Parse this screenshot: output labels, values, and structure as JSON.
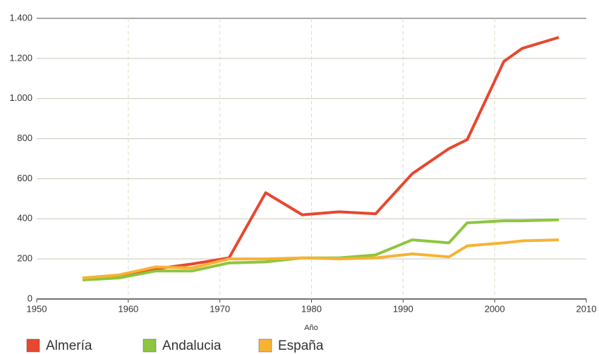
{
  "chart_data": {
    "type": "line",
    "x_label": "Año",
    "x": [
      1955,
      1959,
      1963,
      1967,
      1971,
      1975,
      1979,
      1983,
      1987,
      1991,
      1995,
      1997,
      2001,
      2003,
      2007
    ],
    "series": [
      {
        "name": "Almería",
        "color": "#e8472f",
        "values": [
          105,
          115,
          150,
          175,
          205,
          530,
          420,
          435,
          425,
          625,
          750,
          795,
          1185,
          1250,
          1305
        ]
      },
      {
        "name": "Andalucia",
        "color": "#8dc63f",
        "values": [
          95,
          105,
          140,
          140,
          180,
          185,
          205,
          205,
          220,
          295,
          280,
          380,
          390,
          390,
          395
        ]
      },
      {
        "name": "España",
        "color": "#f9b233",
        "values": [
          105,
          120,
          160,
          155,
          200,
          200,
          205,
          200,
          205,
          225,
          210,
          265,
          280,
          290,
          295
        ]
      }
    ],
    "xlim": [
      1950,
      2010
    ],
    "xticks": [
      1950,
      1960,
      1970,
      1980,
      1990,
      2000,
      2010
    ],
    "ylim": [
      0,
      1400
    ],
    "yticks": [
      0,
      200,
      400,
      600,
      800,
      {
        "value": 1000,
        "label": "1.000"
      },
      {
        "value": 1200,
        "label": "1.200"
      },
      {
        "value": 1400,
        "label": "1.400"
      }
    ],
    "grid": true,
    "legend": "bottom"
  }
}
